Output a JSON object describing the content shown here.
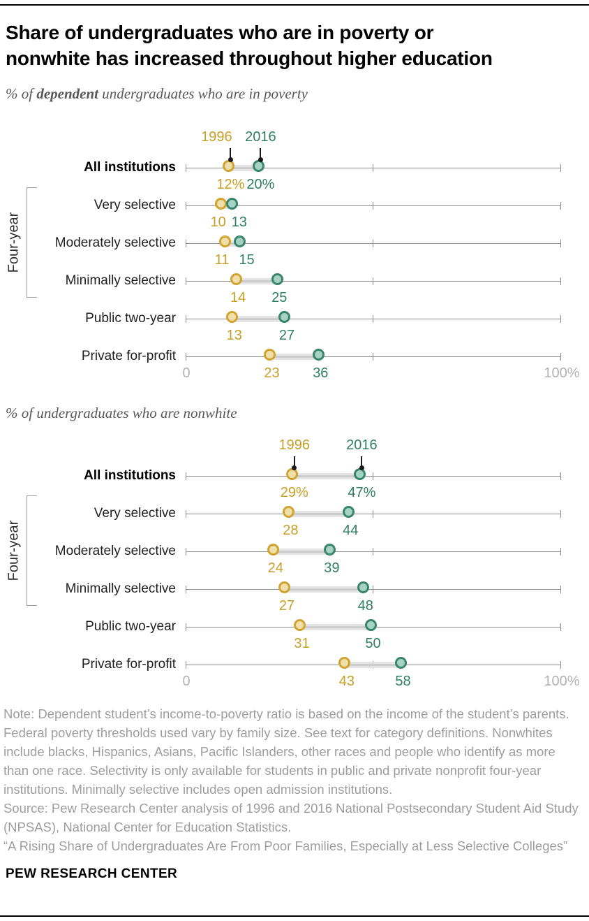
{
  "header": {
    "title_lines": [
      "Share of undergraduates who are in poverty or",
      "nonwhite has increased throughout higher education"
    ]
  },
  "colors": {
    "gold_stroke": "#D1A42F",
    "gold_fill": "#EFDFAC",
    "gold_text": "#C79E27",
    "teal_stroke": "#38856C",
    "teal_fill": "#A6D2C3",
    "teal_text": "#2F7E66",
    "axis": "#8E8E8E",
    "pointer_black": "#1a1a1a"
  },
  "chart_data": [
    {
      "type": "dumbbell",
      "subtitle": {
        "prefix": "% of ",
        "bold": "dependent",
        "suffix": " undergraduates who are in poverty"
      },
      "legend": [
        "1996",
        "2016"
      ],
      "axis": {
        "min": 0,
        "max": 100,
        "left_label": "0",
        "right_label": "100%",
        "mid_tick": 50
      },
      "group_bracket": {
        "label": "Four-year",
        "from_row": 1,
        "to_row": 3
      },
      "rows": [
        {
          "label": "All institutions",
          "bold": true,
          "v1996": 12,
          "v2016": 20,
          "display1996": "12%",
          "display2016": "20%"
        },
        {
          "label": "Very selective",
          "bold": false,
          "v1996": 10,
          "v2016": 13,
          "display1996": "10",
          "display2016": "13"
        },
        {
          "label": "Moderately selective",
          "bold": false,
          "v1996": 11,
          "v2016": 15,
          "display1996": "11",
          "display2016": "15"
        },
        {
          "label": "Minimally selective",
          "bold": false,
          "v1996": 14,
          "v2016": 25,
          "display1996": "14",
          "display2016": "25"
        },
        {
          "label": "Public two-year",
          "bold": false,
          "v1996": 13,
          "v2016": 27,
          "display1996": "13",
          "display2016": "27"
        },
        {
          "label": "Private for-profit",
          "bold": false,
          "v1996": 23,
          "v2016": 36,
          "display1996": "23",
          "display2016": "36"
        }
      ]
    },
    {
      "type": "dumbbell",
      "subtitle": {
        "prefix": "% of undergraduates who are nonwhite",
        "bold": "",
        "suffix": ""
      },
      "legend": [
        "1996",
        "2016"
      ],
      "axis": {
        "min": 0,
        "max": 100,
        "left_label": "0",
        "right_label": "100%",
        "mid_tick": 50
      },
      "group_bracket": {
        "label": "Four-year",
        "from_row": 1,
        "to_row": 3
      },
      "rows": [
        {
          "label": "All institutions",
          "bold": true,
          "v1996": 29,
          "v2016": 47,
          "display1996": "29%",
          "display2016": "47%"
        },
        {
          "label": "Very selective",
          "bold": false,
          "v1996": 28,
          "v2016": 44,
          "display1996": "28",
          "display2016": "44"
        },
        {
          "label": "Moderately selective",
          "bold": false,
          "v1996": 24,
          "v2016": 39,
          "display1996": "24",
          "display2016": "39"
        },
        {
          "label": "Minimally selective",
          "bold": false,
          "v1996": 27,
          "v2016": 48,
          "display1996": "27",
          "display2016": "48"
        },
        {
          "label": "Public two-year",
          "bold": false,
          "v1996": 31,
          "v2016": 50,
          "display1996": "31",
          "display2016": "50"
        },
        {
          "label": "Private for-profit",
          "bold": false,
          "v1996": 43,
          "v2016": 58,
          "display1996": "43",
          "display2016": "58"
        }
      ]
    }
  ],
  "footer": {
    "note": "Note: Dependent student’s income-to-poverty ratio is based on the income of the student’s parents. Federal poverty thresholds used vary by family size. See text for category definitions. Nonwhites include blacks, Hispanics, Asians, Pacific Islanders, other races and people who identify as more than one race. Selectivity is only available for students in public and private nonprofit four-year institutions. Minimally selective includes open admission institutions.",
    "source": "Source: Pew Research Center analysis of 1996 and 2016 National Postsecondary Student Aid Study (NPSAS), National Center for Education Statistics.",
    "quote": "“A Rising Share of Undergraduates Are From Poor Families, Especially at Less Selective Colleges”",
    "brand": "PEW RESEARCH CENTER"
  }
}
